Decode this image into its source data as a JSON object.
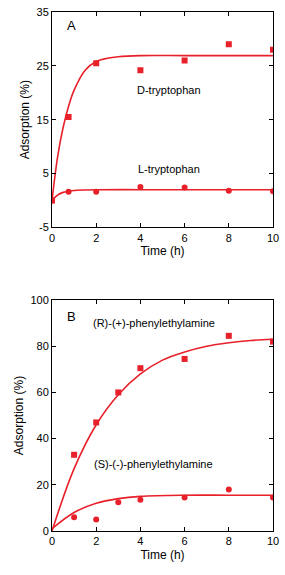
{
  "chart_data": [
    {
      "type": "scatter",
      "x_label": "Time (h)",
      "y_label": "Adsorption (%)",
      "xlim": [
        0,
        10
      ],
      "xticks": [
        0,
        2,
        4,
        6,
        8,
        10
      ],
      "ylim": [
        -5,
        35
      ],
      "yticks": [
        -5,
        5,
        15,
        25,
        35
      ],
      "grid": false,
      "annotations": [
        {
          "text": "A",
          "x": 0.6,
          "y": 32.5
        },
        {
          "text": "D-tryptophan",
          "x": 5.3,
          "y": 20.5
        },
        {
          "text": "L-tryptophan",
          "x": 5.3,
          "y": 5.8
        }
      ],
      "series": [
        {
          "name": "D-tryptophan",
          "type": "scatter",
          "marker": "square",
          "color": "#e8202a",
          "x": [
            0,
            0.75,
            2,
            4,
            6,
            8,
            10
          ],
          "values": [
            0,
            15.5,
            25.5,
            24.2,
            26,
            29,
            28
          ]
        },
        {
          "name": "D-tryptophan",
          "type": "line",
          "color": "#e8202a",
          "x": [
            0,
            0.25,
            0.5,
            0.75,
            1,
            1.5,
            2,
            2.5,
            3,
            4,
            6,
            8,
            10
          ],
          "values": [
            0,
            8,
            13.5,
            17.5,
            20.5,
            24.2,
            25.8,
            26.4,
            26.7,
            26.9,
            26.9,
            26.9,
            26.9
          ]
        },
        {
          "name": "L-tryptophan",
          "type": "scatter",
          "marker": "circle",
          "color": "#e8202a",
          "x": [
            0,
            0.75,
            2,
            4,
            6,
            8,
            10
          ],
          "values": [
            0,
            1.6,
            1.6,
            2.5,
            2.4,
            1.8,
            1.7
          ]
        },
        {
          "name": "L-tryptophan",
          "type": "line",
          "color": "#e8202a",
          "x": [
            0,
            0.25,
            0.5,
            0.75,
            1,
            1.5,
            2,
            4,
            6,
            8,
            10
          ],
          "values": [
            0,
            1.0,
            1.5,
            1.7,
            1.85,
            1.95,
            2.0,
            2.0,
            2.0,
            2.0,
            2.0
          ]
        }
      ]
    },
    {
      "type": "scatter",
      "x_label": "Time (h)",
      "y_label": "Adsorption (%)",
      "xlim": [
        0,
        10
      ],
      "xticks": [
        0,
        2,
        4,
        6,
        8,
        10
      ],
      "ylim": [
        0,
        100
      ],
      "yticks": [
        0,
        20,
        40,
        60,
        80,
        100
      ],
      "grid": false,
      "annotations": [
        {
          "text": "B",
          "x": 0.6,
          "y": 93
        },
        {
          "text": "(R)-(+)-phenylethylamine",
          "x": 4.6,
          "y": 90
        },
        {
          "text": "(S)-(-)-phenylethylamine",
          "x": 4.6,
          "y": 29
        }
      ],
      "series": [
        {
          "name": "(R)-(+)-phenylethylamine",
          "type": "scatter",
          "marker": "square",
          "color": "#e8202a",
          "x": [
            1,
            2,
            3,
            4,
            6,
            8,
            10
          ],
          "values": [
            33,
            47,
            60,
            70.5,
            74.5,
            84.5,
            82
          ]
        },
        {
          "name": "(R)-(+)-phenylethylamine",
          "type": "line",
          "color": "#e8202a",
          "x": [
            0,
            1,
            2,
            3,
            4,
            5,
            6,
            7,
            8,
            9,
            10
          ],
          "values": [
            0,
            27,
            46,
            59,
            68,
            74,
            77.5,
            80,
            81.5,
            82.5,
            83
          ]
        },
        {
          "name": "(S)-(-)-phenylethylamine",
          "type": "scatter",
          "marker": "circle",
          "color": "#e8202a",
          "x": [
            1,
            2,
            3,
            4,
            6,
            8,
            10
          ],
          "values": [
            6,
            5,
            12.5,
            13.5,
            14.5,
            18,
            14.5
          ]
        },
        {
          "name": "(S)-(-)-phenylethylamine",
          "type": "line",
          "color": "#e8202a",
          "x": [
            0,
            1,
            2,
            3,
            4,
            6,
            8,
            10
          ],
          "values": [
            1,
            8,
            12,
            14,
            15,
            15.5,
            15.5,
            15.5
          ]
        }
      ]
    }
  ]
}
